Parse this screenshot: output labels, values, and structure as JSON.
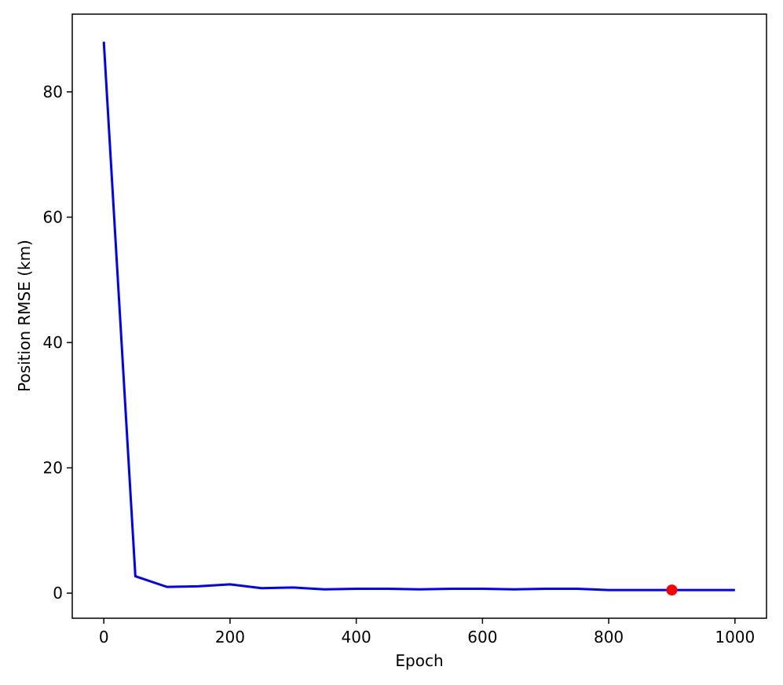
{
  "chart_data": {
    "type": "line",
    "xlabel": "Epoch",
    "ylabel": "Position RMSE (km)",
    "x": [
      0,
      50,
      100,
      150,
      200,
      250,
      300,
      350,
      400,
      450,
      500,
      550,
      600,
      650,
      700,
      750,
      800,
      850,
      900,
      950,
      1000
    ],
    "series": [
      {
        "color": "#0000ff",
        "values": [
          88,
          2.7,
          1.0,
          1.1,
          1.4,
          0.8,
          0.9,
          0.6,
          0.7,
          0.7,
          0.6,
          0.7,
          0.7,
          0.6,
          0.7,
          0.7,
          0.5,
          0.5,
          0.5,
          0.5,
          0.5
        ]
      }
    ],
    "marker": {
      "x": 900,
      "y": 0.5,
      "color": "#ff0000"
    },
    "xlim": [
      -50,
      1050
    ],
    "ylim": [
      -4.0,
      92.4
    ],
    "xticks": [
      0,
      200,
      400,
      600,
      800,
      1000
    ],
    "yticks": [
      0,
      20,
      40,
      60,
      80
    ]
  }
}
